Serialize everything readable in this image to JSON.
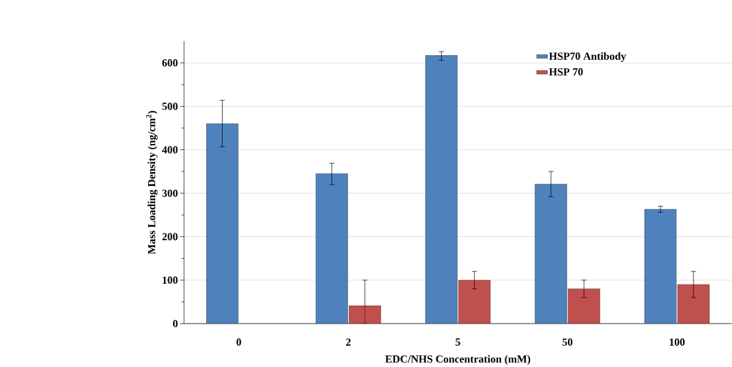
{
  "chart_data": {
    "type": "bar",
    "xlabel": "EDC/NHS Concentration (mM)",
    "ylabel": "Mass Loading Density (ng/cm$^{2}$)",
    "categories": [
      "0",
      "2",
      "5",
      "50",
      "100"
    ],
    "series": [
      {
        "name": "HSP70 Antibody",
        "color": "#4f81bd",
        "values": [
          460,
          345,
          617,
          321,
          263
        ],
        "errors": [
          [
            407,
            514
          ],
          [
            320,
            369
          ],
          [
            606,
            626
          ],
          [
            292,
            350
          ],
          [
            256,
            270
          ]
        ]
      },
      {
        "name": "HSP 70",
        "color": "#c0504d",
        "values": [
          null,
          41,
          100,
          80,
          90
        ],
        "errors": [
          null,
          [
            0,
            100
          ],
          [
            80,
            120
          ],
          [
            60,
            100
          ],
          [
            60,
            120
          ]
        ]
      }
    ],
    "ylim": [
      0,
      650
    ],
    "yticks": [
      0,
      100,
      200,
      300,
      400,
      500,
      600
    ],
    "grid": "y",
    "legend": "top right"
  }
}
